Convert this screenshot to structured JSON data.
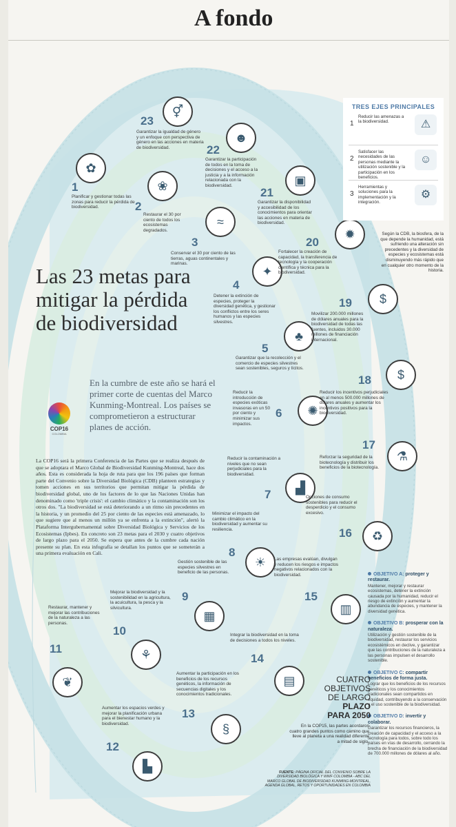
{
  "header": {
    "section_title": "A fondo"
  },
  "main_title": "Las 23 metas para mitigar la pérdida de biodiversidad",
  "subtitle": "En la cumbre de este año se hará el primer corte de cuentas del Marco Kunming-Montreal. Los países se comprometieron a estructurar planes de acción.",
  "logo": {
    "label": "COP16",
    "sublabel": "COLOMBIA"
  },
  "intro": "La COP16 será la primera Conferencia de las Partes que se realiza después de que se adoptara el Marco Global de Biodiversidad Kunming-Montreal, hace dos años. Esta es considerada la hoja de ruta para que los 196 países que forman parte del Convenio sobre la Diversidad Biológica (CDB) planteen estrategias y tomen acciones en sus territorios que permitan mitigar la pérdida de biodiversidad global, uno de los factores de lo que las Naciones Unidas han denominado como 'triple crisis': el cambio climático y la contaminación son los otros dos. \"La biodiversidad se está deteriorando a un ritmo sin precedentes en la historia, y un promedio del 25 por ciento de las especies está amenazado, lo que sugiere que al menos un millón ya se enfrenta a la extinción\", alertó la Plataforma Intergubernamental sobre Diversidad Biológica y Servicios de los Ecosistemas (Ipbes). En concreto son 23 metas para el 2030 y cuatro objetivos de largo plazo para el 2050. Se espera que antes de la cumbre cada nación presente su plan. En esta infografía se detallan los puntos que se someterán a una primera evaluación en Cali.",
  "goals": [
    {
      "num": "1",
      "text": "Planificar y gestionar todas las zonas para reducir la pérdida de biodiversidad.",
      "icon": "map-icon",
      "glyph": "✿"
    },
    {
      "num": "2",
      "text": "Restaurar el 30 por ciento de todos los ecosistemas degradados.",
      "icon": "earth-plant-icon",
      "glyph": "❀"
    },
    {
      "num": "3",
      "text": "Conservar el 30 por ciento de las tierras, aguas continentales y marinas.",
      "icon": "water-land-icon",
      "glyph": "≈"
    },
    {
      "num": "4",
      "text": "Detener la extinción de especies, proteger la diversidad genética, y gestionar los conflictos entre los seres humanos y las especies silvestres.",
      "icon": "bird-icon",
      "glyph": "✦"
    },
    {
      "num": "5",
      "text": "Garantizar que la recolección y el comercio de especies silvestres sean sostenibles, seguros y lícitos.",
      "icon": "trees-icon",
      "glyph": "♣"
    },
    {
      "num": "6",
      "text": "Reducir la introducción de especies exóticas invasoras en un 50 por ciento y minimizar sus impactos.",
      "icon": "invasive-species-icon",
      "glyph": "✺"
    },
    {
      "num": "7",
      "text": "Reducir la contaminación a niveles que no sean perjudiciales para la biodiversidad.",
      "icon": "factory-icon",
      "glyph": "▟"
    },
    {
      "num": "8",
      "text": "Minimizar el impacto del cambio climático en la biodiversidad y aumentar su resiliencia.",
      "icon": "thermometer-icon",
      "glyph": "☀"
    },
    {
      "num": "9",
      "text": "Gestión sostenible de las especies silvestres en beneficio de las personas.",
      "icon": "hands-chart-icon",
      "glyph": "▦"
    },
    {
      "num": "10",
      "text": "Mejorar la biodiversidad y la sostenibilidad en la agricultura, la acuicultura, la pesca y la silvicultura.",
      "icon": "watering-icon",
      "glyph": "⚘"
    },
    {
      "num": "11",
      "text": "Restaurar, mantener y mejorar las contribuciones de la naturaleza a las personas.",
      "icon": "leaf-icon",
      "glyph": "❦"
    },
    {
      "num": "12",
      "text": "Aumentar los espacios verdes y mejorar la planificación urbana para el bienestar humano y la biodiversidad.",
      "icon": "city-icon",
      "glyph": "▙"
    },
    {
      "num": "13",
      "text": "Aumentar la participación en los beneficios de los recursos genéticos, la información de secuencias digitales y los conocimientos tradicionales.",
      "icon": "dna-icon",
      "glyph": "§"
    },
    {
      "num": "14",
      "text": "Integrar la biodiversidad en la toma de decisiones a todos los niveles.",
      "icon": "document-icon",
      "glyph": "▤"
    },
    {
      "num": "15",
      "text": "Las empresas evalúan, divulgan y reducen los riesgos e impactos negativos relacionados con la biodiversidad.",
      "icon": "business-icon",
      "glyph": "▥"
    },
    {
      "num": "16",
      "text": "Opciones de consumo sostenibles para reducir el desperdicio y el consumo excesivo.",
      "icon": "recycle-icon",
      "glyph": "♻"
    },
    {
      "num": "17",
      "text": "Reforzar la seguridad de la biotecnología y distribuir los beneficios de la biotecnología.",
      "icon": "lab-icon",
      "glyph": "⚗"
    },
    {
      "num": "18",
      "text": "Reducir los incentivos perjudiciales en al menos 500.000 millones de dólares anuales y aumentar los incentivos positivos para la biodiversidad.",
      "icon": "globe-money-icon",
      "glyph": "$"
    },
    {
      "num": "19",
      "text": "Movilizar 200.000 millones de dólares anuales para la biodiversidad de todas las fuentes, incluidos 30.000 millones de financiación internacional.",
      "icon": "money-icon",
      "glyph": "$"
    },
    {
      "num": "20",
      "text": "Fortalecer la creación de capacidad, la transferencia de tecnología y la cooperación científica y técnica para la biodiversidad.",
      "icon": "brain-icon",
      "glyph": "✹"
    },
    {
      "num": "21",
      "text": "Garantizar la disponibilidad y accesibilidad de los conocimientos para orientar las acciones en materia de biodiversidad.",
      "icon": "knowledge-icon",
      "glyph": "▣"
    },
    {
      "num": "22",
      "text": "Garantizar la participación de todos en la toma de decisiones y el acceso a la justicia y a la información relacionada con la biodiversidad.",
      "icon": "people-globe-icon",
      "glyph": "☻"
    },
    {
      "num": "23",
      "text": "Garantizar la igualdad de género y un enfoque con perspectiva de género en las acciones en materia de biodiversidad.",
      "icon": "gender-icon",
      "glyph": "⚥"
    }
  ],
  "axes": {
    "title": "TRES EJES PRINCIPALES",
    "items": [
      {
        "num": "1",
        "text": "Reducir las amenazas a la biodiversidad.",
        "icon": "warning-icon",
        "glyph": "⚠"
      },
      {
        "num": "2",
        "text": "Satisfacer las necesidades de las personas mediante la utilización sostenible y la participación en los beneficios.",
        "icon": "community-icon",
        "glyph": "☺"
      },
      {
        "num": "3",
        "text": "Herramientas y soluciones para la implementación y la integración.",
        "icon": "tools-icon",
        "glyph": "⚙"
      }
    ]
  },
  "side_note": "Según la CDB, la biosfera, de la que depende la humanidad, está sufriendo una alteración sin precedentes y la diversidad de especies y ecosistemas está disminuyendo más rápido que en cualquier otro momento de la historia.",
  "objectives": [
    {
      "label": "OBJETIVO A:",
      "heading": "proteger y restaurar.",
      "text": "Mantener, mejorar y restaurar ecosistemas, detener la extinción causada por la humanidad, reducir el riesgo de extinción y aumentar la abundancia de especies, y mantener la diversidad genética."
    },
    {
      "label": "OBJETIVO B:",
      "heading": "prosperar con la naturaleza.",
      "text": "Utilización y gestión sostenible de la biodiversidad, restaurar los servicios ecosistémicos en declive, y garantizar que las contribuciones de la naturaleza a las personas impulsen el desarrollo sostenible."
    },
    {
      "label": "OBJETIVO C:",
      "heading": "compartir beneficios de forma justa.",
      "text": "Lograr que los beneficios de los recursos genéticos y los conocimientos tradicionales sean compartidos en equidad, contribuyendo a la conservación y el uso sostenible de la biodiversidad."
    },
    {
      "label": "OBJETIVO D:",
      "heading": "invertir y colaborar.",
      "text": "Garantizar los recursos financieros, la creación de capacidad y el acceso a la tecnología para todos, sobre todo los países en vías de desarrollo, cerrando la brecha de financiación de la biodiversidad de 700.000 millones de dólares al año."
    }
  ],
  "cuatro": {
    "line1": "CUATRO",
    "line2": "OBJETIVOS",
    "line3": "DE LARGO",
    "line4": "PLAZO",
    "line5": "PARA 2050",
    "body": "En la COP15, las partes acordaron cuatro grandes puntos como camino que lleve al planeta a una realidad diferente a mitad de siglo."
  },
  "source": {
    "label": "FUENTE:",
    "text": "PÁGINA OFICIAL DEL CONVENIO SOBRE LA DIVERSIDAD BIOLÓGICA Y WWF COLOMBIA - ABC DEL MARCO GLOBAL DE BIODIVERSIDAD KUNMING-MONTREAL, AGENDA GLOBAL, RETOS Y OPORTUNIDADES EN COLOMBIA"
  },
  "colors": {
    "accent": "#4d79a6",
    "band_light": "#d9ecef",
    "band_mid": "#c2e0e4",
    "band_green": "#dfeee3"
  }
}
